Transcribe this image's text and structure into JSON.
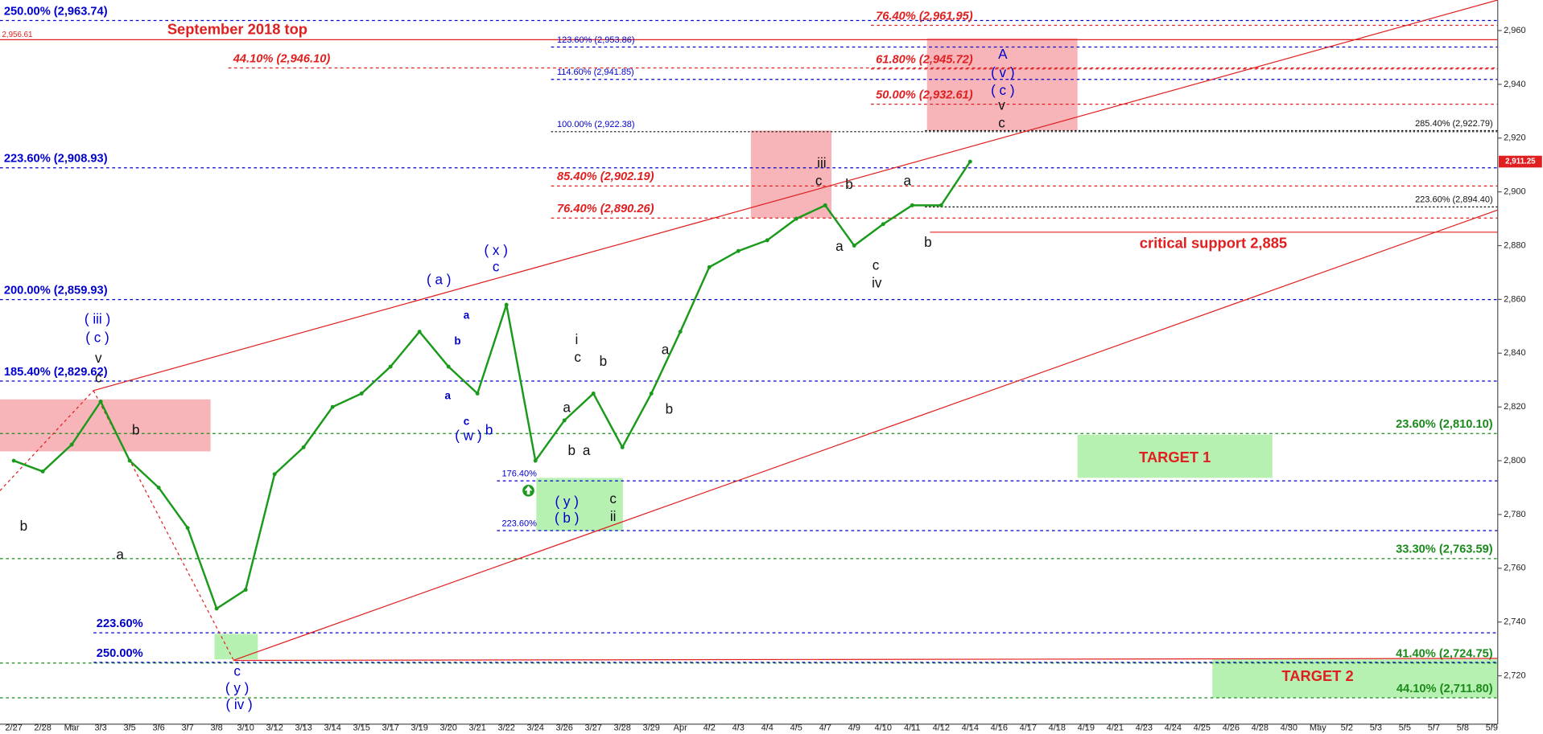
{
  "chart_data": {
    "type": "line",
    "x": [
      "2/27",
      "2/28",
      "Mar",
      "3/3",
      "3/5",
      "3/6",
      "3/7",
      "3/8",
      "3/10",
      "3/12",
      "3/13",
      "3/14",
      "3/15",
      "3/17",
      "3/19",
      "3/20",
      "3/21",
      "3/22",
      "3/24",
      "3/26",
      "3/27",
      "3/28",
      "3/29",
      "Apr",
      "4/2",
      "4/3",
      "4/4",
      "4/5",
      "4/7",
      "4/9",
      "4/10",
      "4/11",
      "4/12",
      "4/14",
      "4/16",
      "4/17",
      "4/18",
      "4/19",
      "4/21",
      "4/23",
      "4/24",
      "4/25",
      "4/26",
      "4/28",
      "4/30",
      "May",
      "5/2",
      "5/3",
      "5/5",
      "5/7",
      "5/8",
      "5/9"
    ],
    "series": [
      {
        "color": "#1a9a1a",
        "values": [
          2800,
          2796,
          2806,
          2822,
          2800,
          2790,
          2775,
          2745,
          2752,
          2795,
          2805,
          2820,
          2825,
          2835,
          2848,
          2835,
          2825,
          2858,
          2800,
          2815,
          2825,
          2805,
          2825,
          2848,
          2872,
          2878,
          2882,
          2890,
          2895,
          2880,
          2888,
          2895,
          2895,
          2911.25,
          null,
          null,
          null,
          null,
          null,
          null,
          null,
          null,
          null,
          null,
          null,
          null,
          null,
          null,
          null,
          null,
          null,
          null
        ]
      }
    ],
    "last_price_label": "2,911.25",
    "ylim": [
      2702,
      2971
    ],
    "yticks": [
      {
        "value": 2720,
        "label": "2,720"
      },
      {
        "value": 2740,
        "label": "2,740"
      },
      {
        "value": 2760,
        "label": "2,760"
      },
      {
        "value": 2780,
        "label": "2,780"
      },
      {
        "value": 2800,
        "label": "2,800"
      },
      {
        "value": 2820,
        "label": "2,820"
      },
      {
        "value": 2840,
        "label": "2,840"
      },
      {
        "value": 2860,
        "label": "2,860"
      },
      {
        "value": 2880,
        "label": "2,880"
      },
      {
        "value": 2900,
        "label": "2,900"
      },
      {
        "value": 2920,
        "label": "2,920"
      },
      {
        "value": 2940,
        "label": "2,940"
      },
      {
        "value": 2960,
        "label": "2,960"
      }
    ],
    "level_groups": {
      "blue_left": {
        "color": "#0000cc",
        "levels": [
          {
            "text": "250.00% (2,963.74)",
            "price": 2963.74
          },
          {
            "text": "223.60% (2,908.93)",
            "price": 2908.93
          },
          {
            "text": "200.00% (2,859.93)",
            "price": 2859.93
          },
          {
            "text": "185.40% (2,829.62)",
            "price": 2829.62
          }
        ]
      },
      "september": {
        "color": "#e02020",
        "levels": [
          {
            "text": "2,956.61",
            "price": 2956.61
          }
        ]
      },
      "red_top_left": {
        "color": "#e02020",
        "levels": [
          {
            "text": "44.10% (2,946.10)",
            "price": 2946.1
          }
        ]
      },
      "blue_mid": {
        "color": "#0000cc",
        "levels": [
          {
            "text": "123.60% (2,953.86)",
            "price": 2953.86
          },
          {
            "text": "114.60% (2,941.85)",
            "price": 2941.85
          }
        ]
      },
      "black_mid": {
        "color": "#0000cc",
        "levels": [
          {
            "text": "100.00% (2,922.38)",
            "price": 2922.38
          }
        ]
      },
      "red_mid": {
        "color": "#e02020",
        "levels": [
          {
            "text": "85.40% (2,902.19)",
            "price": 2902.19
          },
          {
            "text": "76.40% (2,890.26)",
            "price": 2890.26
          }
        ]
      },
      "red_upper": {
        "color": "#e02020",
        "levels": [
          {
            "text": "76.40% (2,961.95)",
            "price": 2961.95
          },
          {
            "text": "61.80% (2,945.72)",
            "price": 2945.72
          },
          {
            "text": "50.00% (2,932.61)",
            "price": 2932.61
          }
        ]
      },
      "black_right": {
        "color": "#111111",
        "levels": [
          {
            "text": "285.40% (2,922.79)",
            "price": 2922.79
          },
          {
            "text": "223.60% (2,894.40)",
            "price": 2894.4
          }
        ]
      },
      "support": {
        "color": "#e02020",
        "levels": [
          {
            "text": "critical support 2,885",
            "price": 2885
          }
        ]
      },
      "green_right": {
        "color": "#1a8a1a",
        "levels": [
          {
            "text": "23.60% (2,810.10)",
            "price": 2810.1
          },
          {
            "text": "33.30% (2,763.59)",
            "price": 2763.59
          },
          {
            "text": "41.40% (2,724.75)",
            "price": 2724.75
          },
          {
            "text": "44.10% (2,711.80)",
            "price": 2711.8
          }
        ]
      },
      "blue_low": {
        "color": "#0000cc",
        "levels": [
          {
            "text": "176.40%",
            "price": 2792.5
          },
          {
            "text": "223.60%",
            "price": 2774
          }
        ]
      },
      "blue_bottom": {
        "color": "#0000cc",
        "levels": [
          {
            "text": "223.60%",
            "price": 2736
          },
          {
            "text": "250.00%",
            "price": 2725
          }
        ]
      }
    },
    "wave_labels_blue": {
      "color": "#0000cc",
      "texts": [
        "( iii )",
        "( c )",
        "( a )",
        "( x )",
        "c",
        "a",
        "b",
        "a",
        "c",
        "( w )",
        "b",
        "( y )",
        "( b )",
        "c",
        "( y )",
        "( iv )",
        "A",
        "( v )",
        "( c )"
      ]
    },
    "wave_labels_black": {
      "color": "#111111",
      "texts": [
        "v",
        "c",
        "b",
        "b",
        "a",
        "i",
        "c",
        "b",
        "a",
        "b",
        "a",
        "c",
        "ii",
        "a",
        "b",
        "iii",
        "c",
        "b",
        "a",
        "c",
        "iv",
        "a",
        "b",
        "v",
        "c"
      ]
    },
    "notes_red": {
      "color": "#e02020",
      "texts": [
        "September 2018 top",
        "TARGET 1",
        "TARGET 2"
      ]
    }
  }
}
